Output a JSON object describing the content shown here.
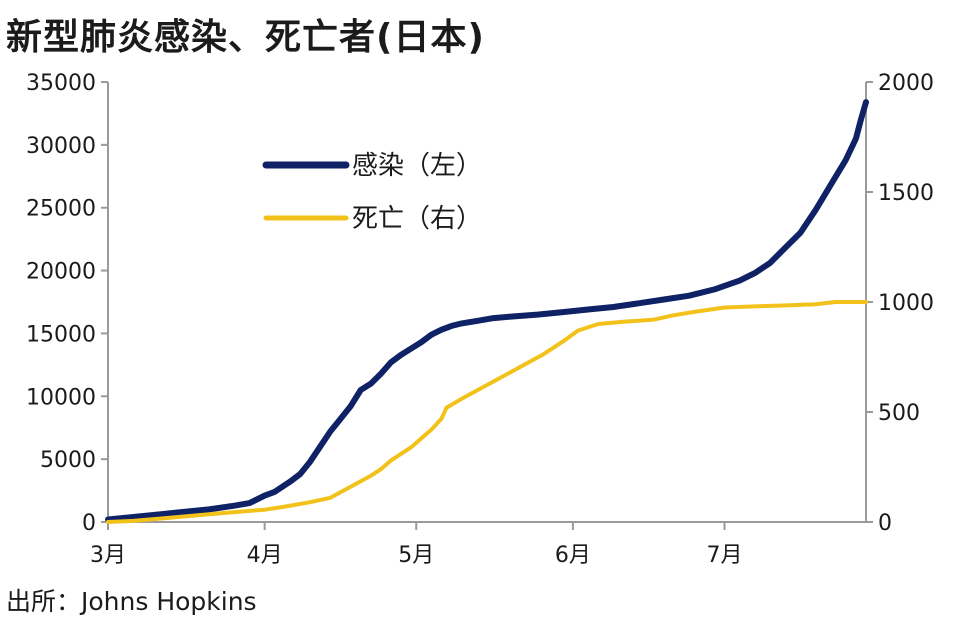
{
  "title": "新型肺炎感染、死亡者(日本)",
  "source": "出所：Johns Hopkins",
  "colors": {
    "infections": "#0f2266",
    "deaths": "#f2c21b",
    "axis": "#9a9a9a"
  },
  "chart_data": {
    "type": "line",
    "title": "新型肺炎感染、死亡者(日本)",
    "xlabel": "",
    "ylabel": "",
    "x_ticks": [
      {
        "label": "3月",
        "day": 0
      },
      {
        "label": "4月",
        "day": 31
      },
      {
        "label": "5月",
        "day": 61
      },
      {
        "label": "6月",
        "day": 92
      },
      {
        "label": "7月",
        "day": 122
      }
    ],
    "x_range": [
      0,
      150
    ],
    "y_left": {
      "ticks": [
        0,
        5000,
        10000,
        15000,
        20000,
        25000,
        30000,
        35000
      ],
      "range": [
        0,
        35000
      ]
    },
    "y_right": {
      "ticks": [
        0,
        500,
        1000,
        1500,
        2000
      ],
      "range": [
        0,
        2000
      ]
    },
    "legend_position": "top-left",
    "grid": false,
    "series": [
      {
        "name": "感染（左）",
        "axis": "left",
        "points": [
          [
            0,
            200
          ],
          [
            5,
            400
          ],
          [
            10,
            600
          ],
          [
            15,
            800
          ],
          [
            20,
            1000
          ],
          [
            25,
            1300
          ],
          [
            28,
            1500
          ],
          [
            31,
            2100
          ],
          [
            33,
            2400
          ],
          [
            36,
            3200
          ],
          [
            38,
            3800
          ],
          [
            40,
            4800
          ],
          [
            42,
            6000
          ],
          [
            44,
            7200
          ],
          [
            46,
            8200
          ],
          [
            48,
            9200
          ],
          [
            50,
            10500
          ],
          [
            52,
            11000
          ],
          [
            54,
            11800
          ],
          [
            56,
            12700
          ],
          [
            58,
            13300
          ],
          [
            60,
            13800
          ],
          [
            62,
            14300
          ],
          [
            64,
            14900
          ],
          [
            66,
            15300
          ],
          [
            68,
            15600
          ],
          [
            70,
            15800
          ],
          [
            73,
            16000
          ],
          [
            76,
            16200
          ],
          [
            80,
            16350
          ],
          [
            85,
            16500
          ],
          [
            90,
            16700
          ],
          [
            95,
            16900
          ],
          [
            100,
            17100
          ],
          [
            105,
            17400
          ],
          [
            110,
            17700
          ],
          [
            115,
            18000
          ],
          [
            120,
            18500
          ],
          [
            125,
            19200
          ],
          [
            128,
            19800
          ],
          [
            131,
            20600
          ],
          [
            134,
            21800
          ],
          [
            137,
            23000
          ],
          [
            140,
            24800
          ],
          [
            143,
            26800
          ],
          [
            146,
            28800
          ],
          [
            148,
            30500
          ],
          [
            149,
            32000
          ],
          [
            150,
            33400
          ]
        ]
      },
      {
        "name": "死亡（右）",
        "axis": "right",
        "points": [
          [
            0,
            0
          ],
          [
            5,
            5
          ],
          [
            10,
            15
          ],
          [
            15,
            25
          ],
          [
            20,
            35
          ],
          [
            25,
            45
          ],
          [
            31,
            56
          ],
          [
            35,
            70
          ],
          [
            40,
            90
          ],
          [
            44,
            110
          ],
          [
            48,
            160
          ],
          [
            52,
            210
          ],
          [
            54,
            240
          ],
          [
            56,
            280
          ],
          [
            58,
            310
          ],
          [
            60,
            340
          ],
          [
            62,
            380
          ],
          [
            64,
            420
          ],
          [
            66,
            470
          ],
          [
            67,
            520
          ],
          [
            70,
            560
          ],
          [
            74,
            610
          ],
          [
            78,
            660
          ],
          [
            82,
            710
          ],
          [
            86,
            760
          ],
          [
            90,
            820
          ],
          [
            93,
            870
          ],
          [
            97,
            900
          ],
          [
            102,
            910
          ],
          [
            108,
            920
          ],
          [
            112,
            940
          ],
          [
            116,
            955
          ],
          [
            122,
            975
          ],
          [
            128,
            980
          ],
          [
            135,
            985
          ],
          [
            140,
            990
          ],
          [
            144,
            1000
          ],
          [
            150,
            1000
          ]
        ]
      }
    ]
  }
}
